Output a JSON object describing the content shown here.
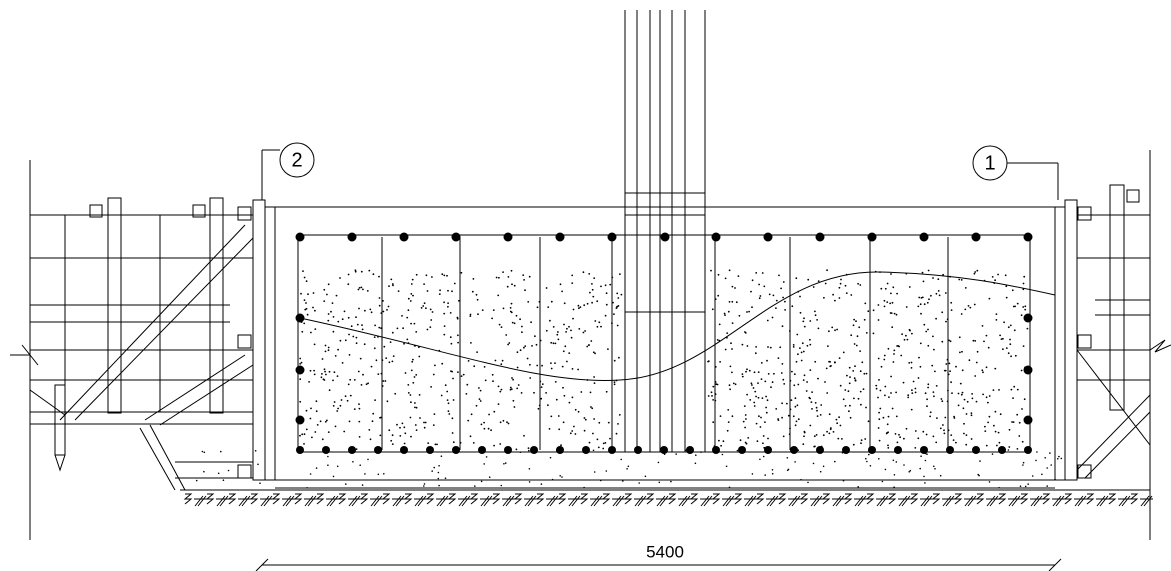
{
  "markers": [
    "2",
    "1"
  ],
  "dimension": "5400"
}
